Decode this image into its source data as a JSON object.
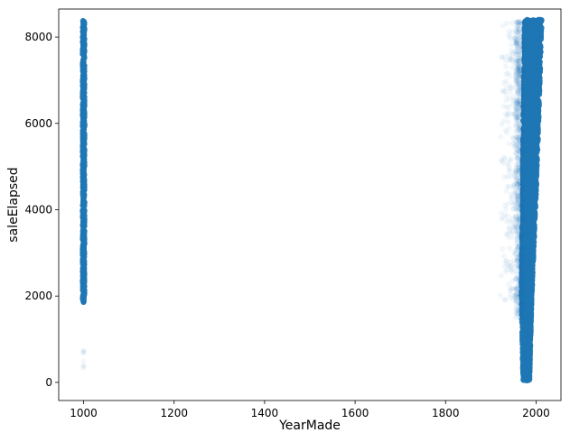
{
  "chart_data": {
    "type": "scatter",
    "xlabel": "YearMade",
    "ylabel": "saleElapsed",
    "xlim": [
      945,
      2055
    ],
    "ylim": [
      -420,
      8650
    ],
    "xticks": [
      1000,
      1200,
      1400,
      1600,
      1800,
      2000
    ],
    "yticks": [
      0,
      2000,
      4000,
      6000,
      8000
    ],
    "grid": false,
    "marker_color": "#1f77b4",
    "series": [
      {
        "clusters": [
          {
            "x": 1000,
            "y_range": [
              1850,
              8380
            ],
            "density": "dense"
          },
          {
            "x_range": [
              1965,
              2012
            ],
            "y_range": [
              50,
              8400
            ],
            "density": "dense",
            "note_x_by_y": [
              [
                50,
                1972,
                1985
              ],
              [
                2000,
                1968,
                1990
              ],
              [
                4000,
                1970,
                1998
              ],
              [
                6000,
                1972,
                2005
              ],
              [
                8380,
                1975,
                2012
              ]
            ]
          },
          {
            "x_range": [
              1919,
              1965
            ],
            "y_range": [
              1900,
              8350
            ],
            "density": "sparse"
          },
          {
            "x": 1000,
            "y_range": [
              200,
              850
            ],
            "density": "very-sparse"
          }
        ]
      }
    ]
  }
}
